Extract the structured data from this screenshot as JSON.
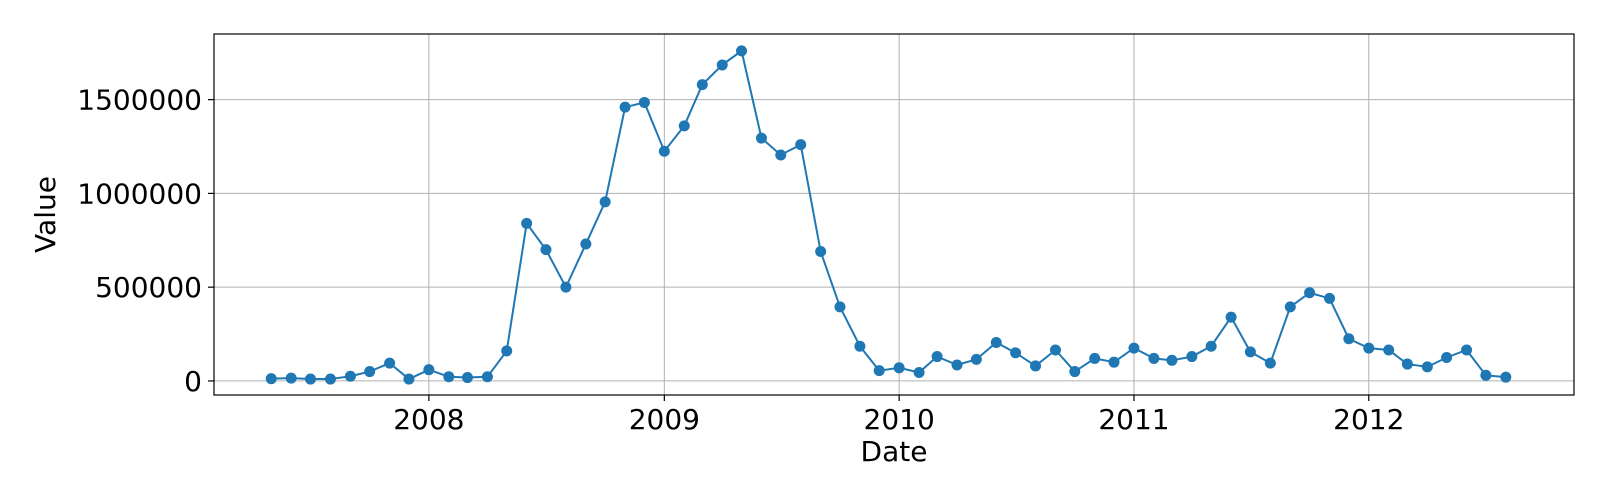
{
  "chart_data": {
    "type": "line",
    "title": "",
    "xlabel": "Date",
    "ylabel": "Value",
    "grid": true,
    "marker": "circle",
    "colors": {
      "series": "#1f77b4"
    },
    "xlim": [
      "2007-02-01",
      "2012-11-15"
    ],
    "ylim": [
      -75000,
      1850000
    ],
    "x_ticks": [
      {
        "value": "2008-01-01",
        "label": "2008"
      },
      {
        "value": "2009-01-01",
        "label": "2009"
      },
      {
        "value": "2010-01-01",
        "label": "2010"
      },
      {
        "value": "2011-01-01",
        "label": "2011"
      },
      {
        "value": "2012-01-01",
        "label": "2012"
      }
    ],
    "y_ticks": [
      {
        "value": 0,
        "label": "0"
      },
      {
        "value": 500000,
        "label": "500000"
      },
      {
        "value": 1000000,
        "label": "1000000"
      },
      {
        "value": 1500000,
        "label": "1500000"
      }
    ],
    "x": [
      "2007-05-01",
      "2007-06-01",
      "2007-07-01",
      "2007-08-01",
      "2007-09-01",
      "2007-10-01",
      "2007-11-01",
      "2007-12-01",
      "2008-01-01",
      "2008-02-01",
      "2008-03-01",
      "2008-04-01",
      "2008-05-01",
      "2008-06-01",
      "2008-07-01",
      "2008-08-01",
      "2008-09-01",
      "2008-10-01",
      "2008-11-01",
      "2008-12-01",
      "2009-01-01",
      "2009-02-01",
      "2009-03-01",
      "2009-04-01",
      "2009-05-01",
      "2009-06-01",
      "2009-07-01",
      "2009-08-01",
      "2009-09-01",
      "2009-10-01",
      "2009-11-01",
      "2009-12-01",
      "2010-01-01",
      "2010-02-01",
      "2010-03-01",
      "2010-04-01",
      "2010-05-01",
      "2010-06-01",
      "2010-07-01",
      "2010-08-01",
      "2010-09-01",
      "2010-10-01",
      "2010-11-01",
      "2010-12-01",
      "2011-01-01",
      "2011-02-01",
      "2011-03-01",
      "2011-04-01",
      "2011-05-01",
      "2011-06-01",
      "2011-07-01",
      "2011-08-01",
      "2011-09-01",
      "2011-10-01",
      "2011-11-01",
      "2011-12-01",
      "2012-01-01",
      "2012-02-01",
      "2012-03-01",
      "2012-04-01",
      "2012-05-01",
      "2012-06-01",
      "2012-07-01",
      "2012-08-01"
    ],
    "series": [
      {
        "values": [
          12000,
          15000,
          10000,
          10000,
          25000,
          50000,
          95000,
          10000,
          60000,
          22000,
          18000,
          22000,
          160000,
          840000,
          700000,
          500000,
          730000,
          955000,
          1460000,
          1485000,
          1225000,
          1360000,
          1580000,
          1685000,
          1760000,
          1295000,
          1205000,
          1260000,
          690000,
          395000,
          185000,
          55000,
          70000,
          45000,
          130000,
          85000,
          115000,
          205000,
          150000,
          80000,
          165000,
          50000,
          120000,
          100000,
          175000,
          120000,
          110000,
          130000,
          185000,
          340000,
          155000,
          95000,
          395000,
          470000,
          440000,
          225000,
          175000,
          165000,
          90000,
          75000,
          125000,
          165000,
          30000,
          20000
        ]
      }
    ]
  }
}
